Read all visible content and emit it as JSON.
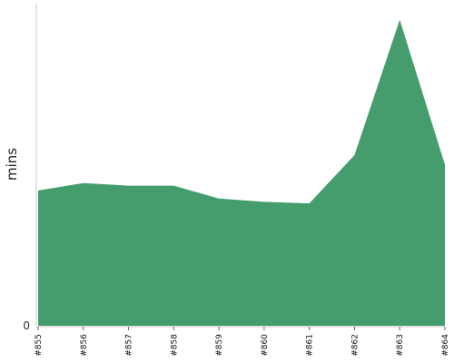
{
  "chart_data": {
    "type": "area",
    "title": "",
    "xlabel": "",
    "ylabel": "mins",
    "categories": [
      "#855",
      "#856",
      "#857",
      "#858",
      "#859",
      "#860",
      "#861",
      "#862",
      "#863",
      "#864"
    ],
    "series": [
      {
        "values": [
          42.0,
          44.3,
          43.5,
          43.5,
          39.5,
          38.5,
          38.0,
          53.0,
          95.0,
          50.0
        ],
        "color": "#459d6e"
      }
    ],
    "y_ticks": [
      {
        "value": 0,
        "label": "0"
      }
    ],
    "ylim": [
      0,
      100
    ],
    "grid": false,
    "legend": "none"
  }
}
